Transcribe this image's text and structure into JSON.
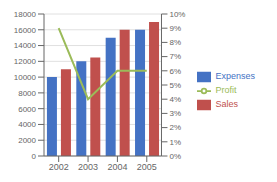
{
  "chart_data": {
    "type": "bar",
    "categories": [
      "2002",
      "2003",
      "2004",
      "2005"
    ],
    "series": [
      {
        "name": "Expenses",
        "color": "#4472C4",
        "values": [
          10000,
          12000,
          15000,
          16000
        ]
      },
      {
        "name": "Sales",
        "color": "#C0504D",
        "values": [
          11000,
          12500,
          16000,
          17000
        ]
      },
      {
        "name": "Profit",
        "type": "line",
        "axis": "y2",
        "color": "#9BBB59",
        "values": [
          0.09,
          0.04,
          0.06,
          0.06
        ]
      }
    ],
    "ylim": [
      0,
      18000
    ],
    "yticks": [
      0,
      2000,
      4000,
      6000,
      8000,
      10000,
      12000,
      14000,
      16000,
      18000
    ],
    "y2lim": [
      0,
      0.1
    ],
    "y2ticks": [
      {
        "value": 0.0,
        "label": "0%"
      },
      {
        "value": 0.01,
        "label": "1%"
      },
      {
        "value": 0.02,
        "label": "2%"
      },
      {
        "value": 0.03,
        "label": "3%"
      },
      {
        "value": 0.04,
        "label": "4%"
      },
      {
        "value": 0.05,
        "label": "5%"
      },
      {
        "value": 0.06,
        "label": "6%"
      },
      {
        "value": 0.07,
        "label": "7%"
      },
      {
        "value": 0.08,
        "label": "8%"
      },
      {
        "value": 0.09,
        "label": "9%"
      },
      {
        "value": 0.1,
        "label": "10%"
      }
    ],
    "grid": true,
    "legend": "right"
  }
}
